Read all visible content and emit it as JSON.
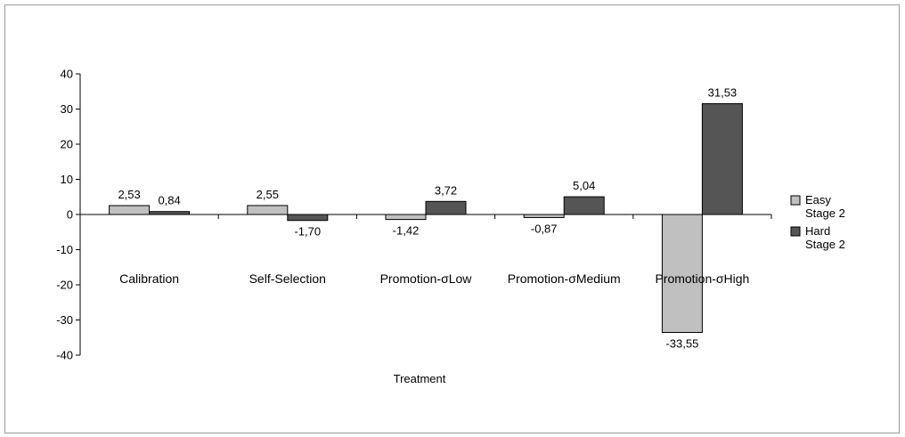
{
  "chart_data": {
    "type": "bar",
    "categories": [
      "Calibration",
      "Self-Selection",
      "Promotion-σLow",
      "Promotion-σMedium",
      "Promotion-σHigh"
    ],
    "series": [
      {
        "name": "Easy Stage 2",
        "name_lines": [
          "Easy",
          "Stage 2"
        ],
        "color": "#c0c0c0",
        "values": [
          2.53,
          2.55,
          -1.42,
          -0.87,
          -33.55
        ],
        "labels": [
          "2,53",
          "2,55",
          "-1,42",
          "-0,87",
          "-33,55"
        ]
      },
      {
        "name": "Hard Stage 2",
        "name_lines": [
          "Hard",
          "Stage 2"
        ],
        "color": "#555555",
        "values": [
          0.84,
          -1.7,
          3.72,
          5.04,
          31.53
        ],
        "labels": [
          "0,84",
          "-1,70",
          "3,72",
          "5,04",
          "31,53"
        ]
      }
    ],
    "xlabel": "Treatment",
    "ylabel": "",
    "ylim": [
      -40,
      40
    ],
    "yticks": [
      -40,
      -30,
      -20,
      -10,
      0,
      10,
      20,
      30,
      40
    ],
    "grid": false,
    "legend_position": "right"
  }
}
